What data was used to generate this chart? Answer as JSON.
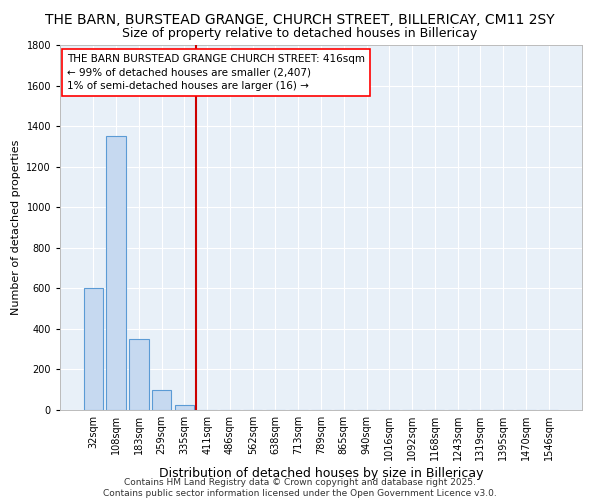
{
  "title_line1": "THE BARN, BURSTEAD GRANGE, CHURCH STREET, BILLERICAY, CM11 2SY",
  "title_line2": "Size of property relative to detached houses in Billericay",
  "xlabel": "Distribution of detached houses by size in Billericay",
  "ylabel": "Number of detached properties",
  "categories": [
    "32sqm",
    "108sqm",
    "183sqm",
    "259sqm",
    "335sqm",
    "411sqm",
    "486sqm",
    "562sqm",
    "638sqm",
    "713sqm",
    "789sqm",
    "865sqm",
    "940sqm",
    "1016sqm",
    "1092sqm",
    "1168sqm",
    "1243sqm",
    "1319sqm",
    "1395sqm",
    "1470sqm",
    "1546sqm"
  ],
  "values": [
    600,
    1350,
    350,
    100,
    25,
    0,
    0,
    0,
    0,
    0,
    0,
    0,
    0,
    0,
    0,
    0,
    0,
    0,
    0,
    0,
    0
  ],
  "bar_color": "#c6d9f0",
  "bar_edge_color": "#5b9bd5",
  "red_line_index": 5,
  "red_line_color": "#cc0000",
  "ylim": [
    0,
    1800
  ],
  "yticks": [
    0,
    200,
    400,
    600,
    800,
    1000,
    1200,
    1400,
    1600,
    1800
  ],
  "annotation_box_text": "THE BARN BURSTEAD GRANGE CHURCH STREET: 416sqm\n← 99% of detached houses are smaller (2,407)\n1% of semi-detached houses are larger (16) →",
  "bg_color": "#e8f0f8",
  "footer_line1": "Contains HM Land Registry data © Crown copyright and database right 2025.",
  "footer_line2": "Contains public sector information licensed under the Open Government Licence v3.0.",
  "title_fontsize": 10,
  "subtitle_fontsize": 9,
  "annotation_fontsize": 7.5,
  "footer_fontsize": 6.5,
  "ylabel_fontsize": 8,
  "xlabel_fontsize": 9,
  "tick_fontsize": 7
}
